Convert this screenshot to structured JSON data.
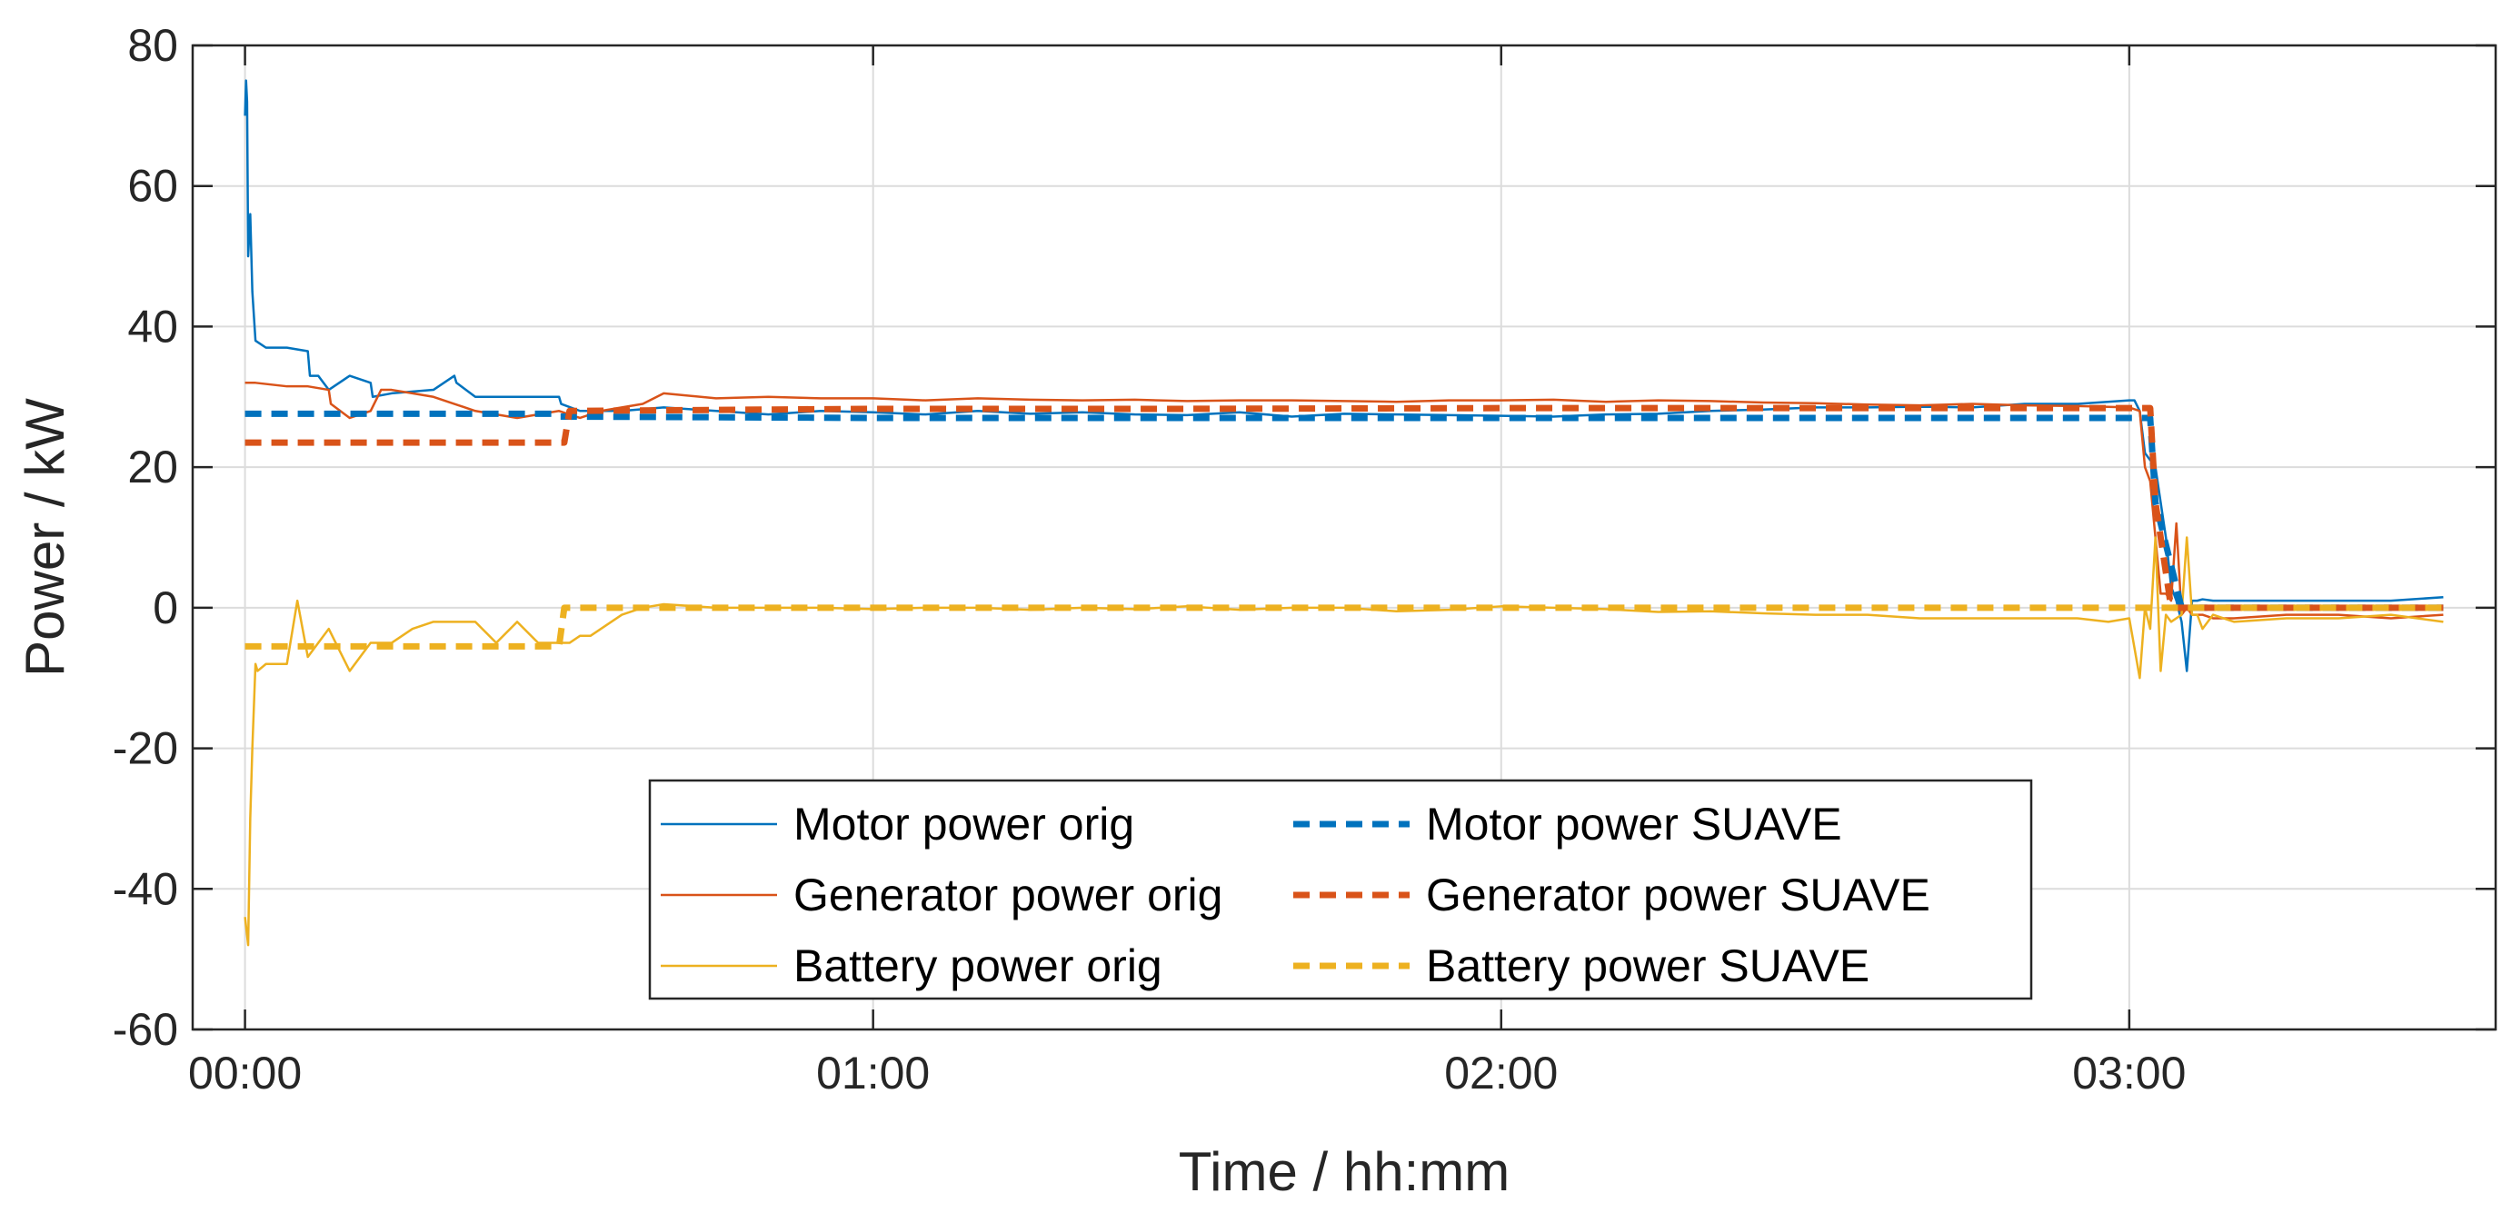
{
  "chart_data": {
    "type": "line",
    "xlabel": "Time / hh:mm",
    "ylabel": "Power / kW",
    "xlim": [
      -5,
      215
    ],
    "ylim": [
      -60,
      80
    ],
    "xticks": [
      {
        "value": 0,
        "label": "00:00"
      },
      {
        "value": 60,
        "label": "01:00"
      },
      {
        "value": 120,
        "label": "02:00"
      },
      {
        "value": 180,
        "label": "03:00"
      }
    ],
    "yticks": [
      {
        "value": 80,
        "label": "80"
      },
      {
        "value": 60,
        "label": "60"
      },
      {
        "value": 40,
        "label": "40"
      },
      {
        "value": 20,
        "label": "20"
      },
      {
        "value": 0,
        "label": "0"
      },
      {
        "value": -20,
        "label": "-20"
      },
      {
        "value": -40,
        "label": "-40"
      },
      {
        "value": -60,
        "label": "-60"
      }
    ],
    "grid": true,
    "legend_position": "bottom-center",
    "series": [
      {
        "name": "Motor power orig",
        "color": "#0072BD",
        "style": "solid",
        "x": [
          0,
          0.1,
          0.2,
          0.3,
          0.5,
          0.7,
          1,
          2,
          4,
          6,
          6.2,
          7,
          8,
          10,
          12,
          12.2,
          14,
          18,
          20,
          20.2,
          22,
          24,
          26,
          28,
          30,
          30.2,
          32,
          34,
          36,
          40,
          45,
          50,
          55,
          60,
          65,
          70,
          75,
          80,
          85,
          90,
          95,
          100,
          105,
          110,
          115,
          120,
          125,
          130,
          135,
          140,
          145,
          150,
          155,
          160,
          165,
          170,
          175,
          180,
          180.5,
          181,
          181.5,
          182,
          182.5,
          183,
          183.5,
          184,
          184.5,
          185,
          185.5,
          186,
          186.5,
          187,
          188,
          190,
          195,
          200,
          205,
          210
        ],
        "y": [
          70,
          75,
          72,
          50,
          56,
          45,
          38,
          37,
          37,
          36.5,
          33,
          33,
          31,
          33,
          32,
          30,
          30.5,
          31,
          33,
          32,
          30,
          30,
          30,
          30,
          30,
          29,
          28,
          28,
          28,
          28.5,
          28,
          27.5,
          28,
          27.8,
          27.5,
          28,
          27.6,
          27.8,
          27.5,
          27.4,
          27.8,
          27.2,
          27.6,
          27.5,
          27.4,
          27.3,
          27.2,
          27.5,
          27.6,
          28,
          28.2,
          28.5,
          28.5,
          28.6,
          28.5,
          29,
          29,
          29.5,
          29.5,
          28,
          22,
          21,
          20,
          15,
          10,
          3,
          1,
          -2,
          -9,
          1,
          1,
          1.2,
          1,
          1,
          1,
          1,
          1,
          1.5
        ]
      },
      {
        "name": "Generator power orig",
        "color": "#D95319",
        "style": "solid",
        "x": [
          0,
          1,
          4,
          6,
          8,
          8.2,
          10,
          12,
          13,
          14,
          16,
          18,
          20,
          22,
          24,
          26,
          28,
          30,
          32,
          34,
          36,
          38,
          40,
          45,
          50,
          55,
          60,
          65,
          70,
          75,
          80,
          85,
          90,
          95,
          100,
          105,
          110,
          115,
          120,
          125,
          130,
          135,
          140,
          145,
          150,
          155,
          160,
          165,
          170,
          175,
          180,
          181,
          181.5,
          182,
          182.5,
          183,
          183.5,
          184,
          184.5,
          185,
          185.5,
          186,
          186.5,
          187,
          188,
          190,
          195,
          200,
          205,
          210
        ],
        "y": [
          32,
          32,
          31.5,
          31.5,
          31,
          29,
          27,
          28,
          31,
          31,
          30.5,
          30,
          29,
          28,
          27.5,
          27,
          27.5,
          28,
          27,
          28,
          28.5,
          29,
          30.5,
          29.8,
          30,
          29.8,
          29.8,
          29.5,
          29.8,
          29.6,
          29.5,
          29.6,
          29.4,
          29.5,
          29.5,
          29.4,
          29.3,
          29.5,
          29.5,
          29.6,
          29.3,
          29.5,
          29.4,
          29.2,
          29.1,
          28.9,
          28.8,
          29,
          28.8,
          28.7,
          28.5,
          28,
          20,
          18,
          10,
          2,
          2,
          1,
          12,
          -1,
          0,
          -1,
          -1,
          -1,
          -1.5,
          -1.5,
          -1,
          -1,
          -1.5,
          -1
        ]
      },
      {
        "name": "Battery power orig",
        "color": "#EDB120",
        "style": "solid",
        "x": [
          0,
          0.3,
          0.5,
          0.7,
          1,
          1.2,
          2,
          4,
          5,
          6,
          7,
          8,
          9,
          10,
          12,
          14,
          16,
          18,
          20,
          22,
          24,
          26,
          28,
          29,
          30,
          31,
          32,
          33,
          34,
          35,
          36,
          38,
          40,
          45,
          50,
          55,
          60,
          65,
          70,
          75,
          80,
          85,
          90,
          95,
          100,
          105,
          110,
          115,
          120,
          125,
          130,
          135,
          140,
          145,
          150,
          155,
          160,
          165,
          170,
          175,
          178,
          180,
          181,
          181.5,
          182,
          182.5,
          183,
          183.5,
          184,
          185,
          185.5,
          186,
          186.5,
          187,
          188,
          190,
          195,
          200,
          205,
          210
        ],
        "y": [
          -44,
          -48,
          -30,
          -20,
          -8,
          -9,
          -8,
          -8,
          1,
          -7,
          -5,
          -3,
          -6,
          -9,
          -5,
          -5,
          -3,
          -2,
          -2,
          -2,
          -5,
          -2,
          -5,
          -5,
          -5,
          -5,
          -4,
          -4,
          -3,
          -2,
          -1,
          0,
          0.5,
          0,
          0,
          0,
          -0.2,
          0,
          0,
          -0.3,
          0,
          -0.2,
          0.2,
          -0.3,
          0,
          0,
          -0.5,
          -0.3,
          0.2,
          0,
          -0.2,
          -0.6,
          -0.5,
          -0.8,
          -1,
          -1,
          -1.5,
          -1.5,
          -1.5,
          -1.5,
          -2,
          -1.5,
          -10,
          0,
          -3,
          10,
          -9,
          -1,
          -2,
          -1,
          10,
          -1,
          -1,
          -3,
          -1,
          -2,
          -1.5,
          -1.5,
          -1,
          -2
        ]
      },
      {
        "name": "Motor power SUAVE",
        "color": "#0072BD",
        "style": "dashed",
        "x": [
          0,
          29.5,
          30,
          60,
          90,
          120,
          150,
          180,
          182,
          182.5,
          185,
          186,
          210
        ],
        "y": [
          27.6,
          27.6,
          27.2,
          27,
          27,
          27,
          27,
          27,
          27,
          15,
          0,
          0,
          0
        ]
      },
      {
        "name": "Generator power SUAVE",
        "color": "#D95319",
        "style": "dashed",
        "x": [
          0,
          30.5,
          31,
          60,
          90,
          120,
          150,
          180,
          182,
          182.5,
          184,
          186,
          210
        ],
        "y": [
          23.5,
          23.5,
          28,
          28.3,
          28.3,
          28.4,
          28.4,
          28.4,
          28.4,
          15,
          0,
          0,
          0
        ]
      },
      {
        "name": "Battery power SUAVE",
        "color": "#EDB120",
        "style": "dashed",
        "x": [
          0,
          30,
          30.5,
          60,
          90,
          120,
          150,
          180,
          182,
          183,
          210
        ],
        "y": [
          -5.5,
          -5.5,
          0,
          0,
          0,
          0,
          0,
          0,
          0,
          0,
          0
        ]
      }
    ]
  }
}
